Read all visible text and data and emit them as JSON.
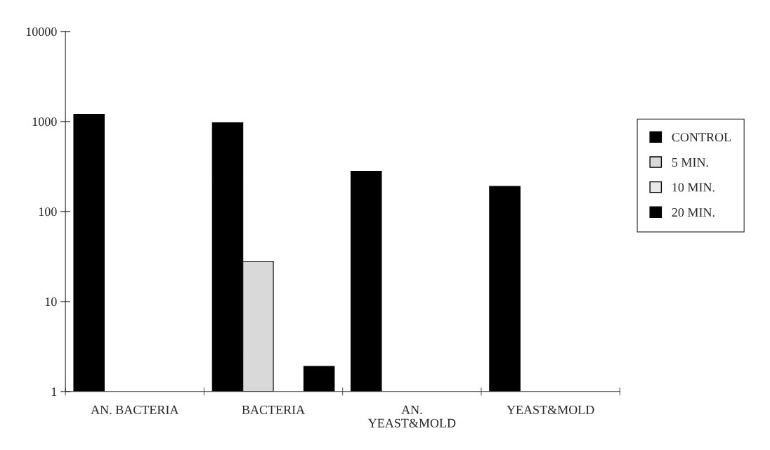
{
  "chart_data": {
    "type": "bar",
    "categories": [
      "AN. BACTERIA",
      "BACTERIA",
      "AN.\nYEAST&MOLD",
      "YEAST&MOLD"
    ],
    "series": [
      {
        "name": "CONTROL",
        "color": "#000000",
        "values": [
          1200,
          970,
          280,
          190
        ]
      },
      {
        "name": "5 MIN.",
        "color": "#d9d9d9",
        "values": [
          null,
          28,
          null,
          null
        ]
      },
      {
        "name": "10 MIN.",
        "color": "#e8e8e8",
        "values": [
          null,
          null,
          null,
          null
        ]
      },
      {
        "name": "20 MIN.",
        "color": "#000000",
        "values": [
          null,
          1.9,
          null,
          null
        ]
      }
    ],
    "log": "y",
    "ylim": [
      1,
      10000
    ],
    "yticks": [
      1,
      10,
      100,
      1000,
      10000
    ],
    "grid": false,
    "legend": "right"
  }
}
